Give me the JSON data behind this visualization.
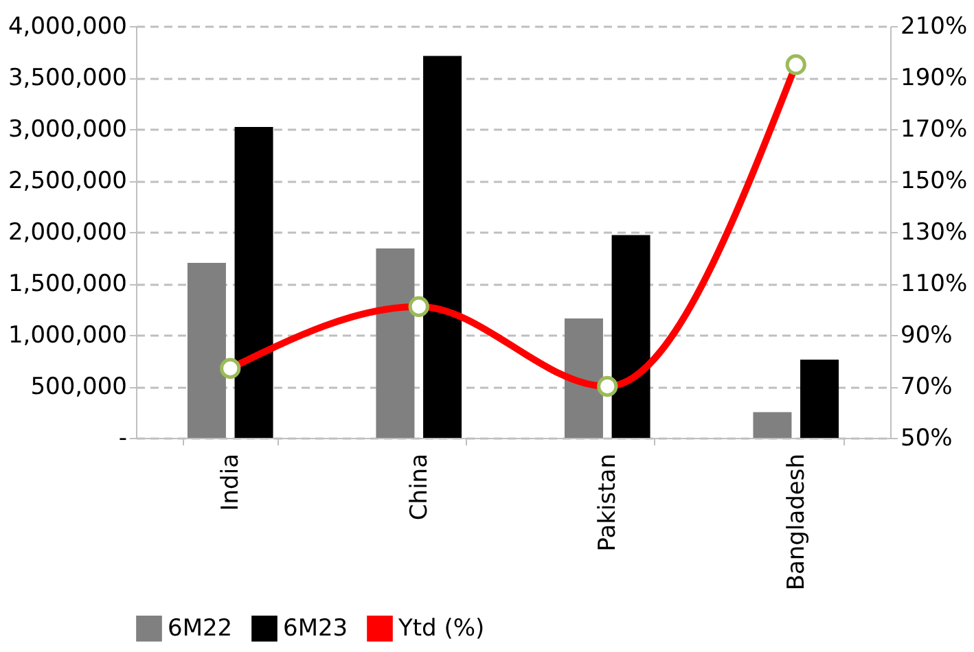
{
  "chart_data": {
    "type": "bar",
    "categories": [
      "India",
      "China",
      "Pakistan",
      "Bangladesh"
    ],
    "series": [
      {
        "name": "6M22",
        "color": "#808080",
        "values": [
          1700000,
          1840000,
          1160000,
          250000
        ]
      },
      {
        "name": "6M23",
        "color": "#000000",
        "values": [
          3020000,
          3710000,
          1970000,
          760000
        ]
      },
      {
        "name": "Ytd (%)",
        "type": "line",
        "axis": "y2",
        "color": "#ff0000",
        "marker": "circle",
        "values": [
          77,
          101,
          70,
          195
        ]
      }
    ],
    "ylim": [
      0,
      4000000
    ],
    "yticks": [
      {
        "value": 0,
        "label": "-"
      },
      {
        "value": 500000,
        "label": "500,000"
      },
      {
        "value": 1000000,
        "label": "1,000,000"
      },
      {
        "value": 1500000,
        "label": "1,500,000"
      },
      {
        "value": 2000000,
        "label": "2,000,000"
      },
      {
        "value": 2500000,
        "label": "2,500,000"
      },
      {
        "value": 3000000,
        "label": "3,000,000"
      },
      {
        "value": 3500000,
        "label": "3,500,000"
      },
      {
        "value": 4000000,
        "label": "4,000,000"
      }
    ],
    "y2lim": [
      50,
      210
    ],
    "y2ticks": [
      {
        "value": 50,
        "label": "50%"
      },
      {
        "value": 70,
        "label": "70%"
      },
      {
        "value": 90,
        "label": "90%"
      },
      {
        "value": 110,
        "label": "110%"
      },
      {
        "value": 130,
        "label": "130%"
      },
      {
        "value": 150,
        "label": "150%"
      },
      {
        "value": 170,
        "label": "170%"
      },
      {
        "value": 190,
        "label": "190%"
      },
      {
        "value": 210,
        "label": "210%"
      }
    ],
    "grid": "y",
    "legend": "bottom"
  }
}
